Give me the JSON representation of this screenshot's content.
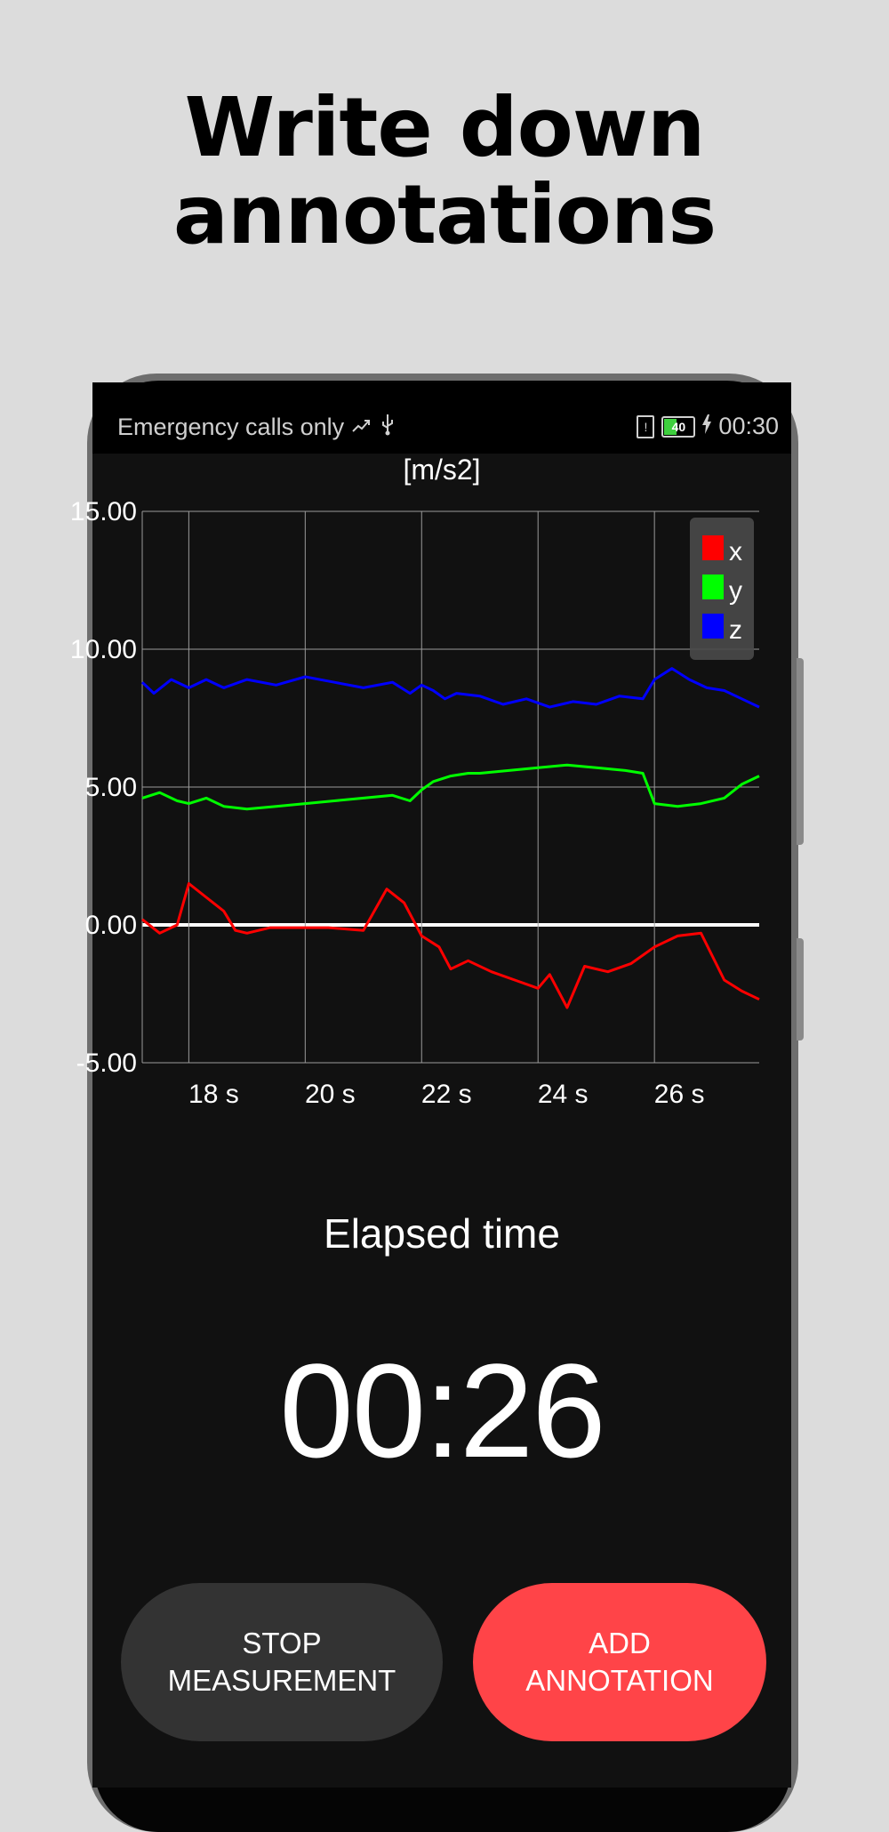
{
  "headline": {
    "line1": "Write down",
    "line2": "annotations"
  },
  "status_bar": {
    "carrier": "Emergency calls only",
    "battery_level": "40",
    "time": "00:30"
  },
  "chart": {
    "unit_label": "[m/s2]",
    "legend": [
      "x",
      "y",
      "z"
    ]
  },
  "chart_data": {
    "type": "line",
    "title": "",
    "ylabel": "[m/s2]",
    "xlabel": "",
    "ylim": [
      -5,
      15
    ],
    "xlim": [
      17.2,
      27.8
    ],
    "yticks": [
      "15.00",
      "10.00",
      "5.00",
      "0.00",
      "-5.00"
    ],
    "xticks": [
      "18 s",
      "20 s",
      "22 s",
      "24 s",
      "26 s"
    ],
    "legend_position": "top-right",
    "grid": true,
    "colors": {
      "x": "#ff0000",
      "y": "#00ff00",
      "z": "#0000ff"
    },
    "series": [
      {
        "name": "x",
        "x": [
          17.2,
          17.5,
          17.8,
          18.0,
          18.3,
          18.6,
          18.8,
          19.0,
          19.4,
          19.8,
          20.4,
          21.0,
          21.4,
          21.7,
          22.0,
          22.3,
          22.5,
          22.8,
          23.2,
          23.6,
          24.0,
          24.2,
          24.5,
          24.8,
          25.2,
          25.6,
          26.0,
          26.4,
          26.8,
          27.2,
          27.5,
          27.8
        ],
        "y": [
          0.2,
          -0.3,
          0.0,
          1.5,
          1.0,
          0.5,
          -0.2,
          -0.3,
          -0.1,
          -0.1,
          -0.1,
          -0.2,
          1.3,
          0.8,
          -0.4,
          -0.8,
          -1.6,
          -1.3,
          -1.7,
          -2.0,
          -2.3,
          -1.8,
          -3.0,
          -1.5,
          -1.7,
          -1.4,
          -0.8,
          -0.4,
          -0.3,
          -2.0,
          -2.4,
          -2.7
        ]
      },
      {
        "name": "y",
        "x": [
          17.2,
          17.5,
          17.8,
          18.0,
          18.3,
          18.6,
          19.0,
          19.5,
          20.0,
          20.5,
          21.0,
          21.5,
          21.8,
          22.0,
          22.2,
          22.5,
          22.8,
          23.0,
          23.5,
          24.0,
          24.5,
          25.0,
          25.5,
          25.8,
          26.0,
          26.4,
          26.8,
          27.2,
          27.5,
          27.8
        ],
        "y": [
          4.6,
          4.8,
          4.5,
          4.4,
          4.6,
          4.3,
          4.2,
          4.3,
          4.4,
          4.5,
          4.6,
          4.7,
          4.5,
          4.9,
          5.2,
          5.4,
          5.5,
          5.5,
          5.6,
          5.7,
          5.8,
          5.7,
          5.6,
          5.5,
          4.4,
          4.3,
          4.4,
          4.6,
          5.1,
          5.4
        ]
      },
      {
        "name": "z",
        "x": [
          17.2,
          17.4,
          17.7,
          18.0,
          18.3,
          18.6,
          19.0,
          19.5,
          20.0,
          20.5,
          21.0,
          21.5,
          21.8,
          22.0,
          22.2,
          22.4,
          22.6,
          23.0,
          23.4,
          23.8,
          24.2,
          24.6,
          25.0,
          25.4,
          25.8,
          26.0,
          26.3,
          26.6,
          26.9,
          27.2,
          27.5,
          27.8
        ],
        "y": [
          8.8,
          8.4,
          8.9,
          8.6,
          8.9,
          8.6,
          8.9,
          8.7,
          9.0,
          8.8,
          8.6,
          8.8,
          8.4,
          8.7,
          8.5,
          8.2,
          8.4,
          8.3,
          8.0,
          8.2,
          7.9,
          8.1,
          8.0,
          8.3,
          8.2,
          8.9,
          9.3,
          8.9,
          8.6,
          8.5,
          8.2,
          7.9
        ]
      }
    ]
  },
  "elapsed": {
    "label": "Elapsed time",
    "value": "00:26"
  },
  "buttons": {
    "stop": "STOP\nMEASUREMENT",
    "add": "ADD\nANNOTATION"
  }
}
